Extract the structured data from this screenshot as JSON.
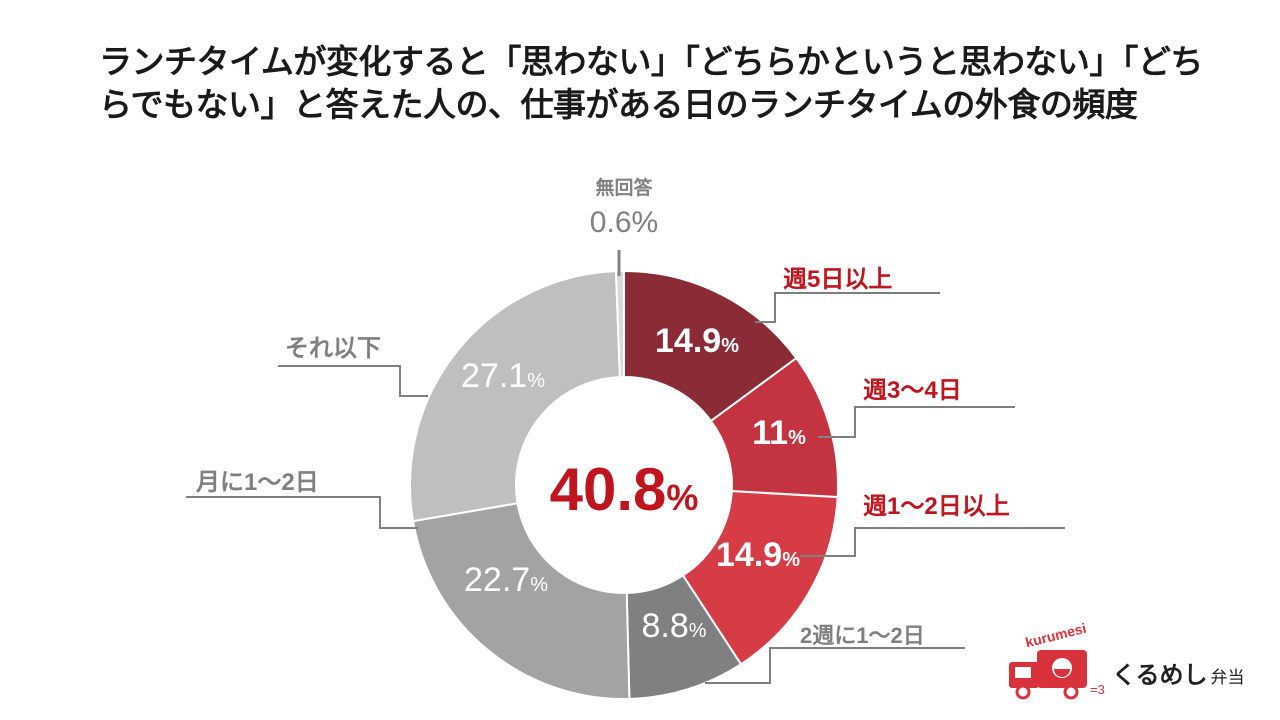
{
  "title": "ランチタイムが変化すると「思わない」「どちらかというと思わない」「どちらでもない」と答えた人の、仕事がある日のランチタイムの外食の頻度",
  "chart_data": {
    "type": "pie",
    "variant": "donut",
    "center_label": "40.8",
    "center_unit": "%",
    "slices": [
      {
        "label": "週5日以上",
        "value": 14.9,
        "value_text": "14.9",
        "unit": "%",
        "color": "#8b2b35",
        "text_color": "#ffffff",
        "label_color": "#c0141f"
      },
      {
        "label": "週3〜4日",
        "value": 11,
        "value_text": "11",
        "unit": "%",
        "color": "#c33440",
        "text_color": "#ffffff",
        "label_color": "#c0141f"
      },
      {
        "label": "週1〜2日以上",
        "value": 14.9,
        "value_text": "14.9",
        "unit": "%",
        "color": "#d53c46",
        "text_color": "#ffffff",
        "label_color": "#c0141f"
      },
      {
        "label": "2週に1〜2日",
        "value": 8.8,
        "value_text": "8.8",
        "unit": "%",
        "color": "#808080",
        "text_color": "#ffffff",
        "label_color": "#808080"
      },
      {
        "label": "月に1〜2日",
        "value": 22.7,
        "value_text": "22.7",
        "unit": "%",
        "color": "#a3a3a3",
        "text_color": "#ffffff",
        "label_color": "#808080"
      },
      {
        "label": "それ以下",
        "value": 27.1,
        "value_text": "27.1",
        "unit": "%",
        "color": "#bfbfbf",
        "text_color": "#ffffff",
        "label_color": "#808080"
      },
      {
        "label": "無回答",
        "value": 0.6,
        "value_text": "0.6",
        "unit": "%",
        "color": "#d9d9d9",
        "text_color": "#808080",
        "label_color": "#808080"
      }
    ],
    "start": "top",
    "direction": "clockwise",
    "colors": {
      "accent": "#c0141f",
      "muted": "#808080"
    }
  },
  "brand": {
    "name": "くるめし",
    "sub": "弁当",
    "logo_text": "kurumesi",
    "logo_color": "#d8323c"
  }
}
